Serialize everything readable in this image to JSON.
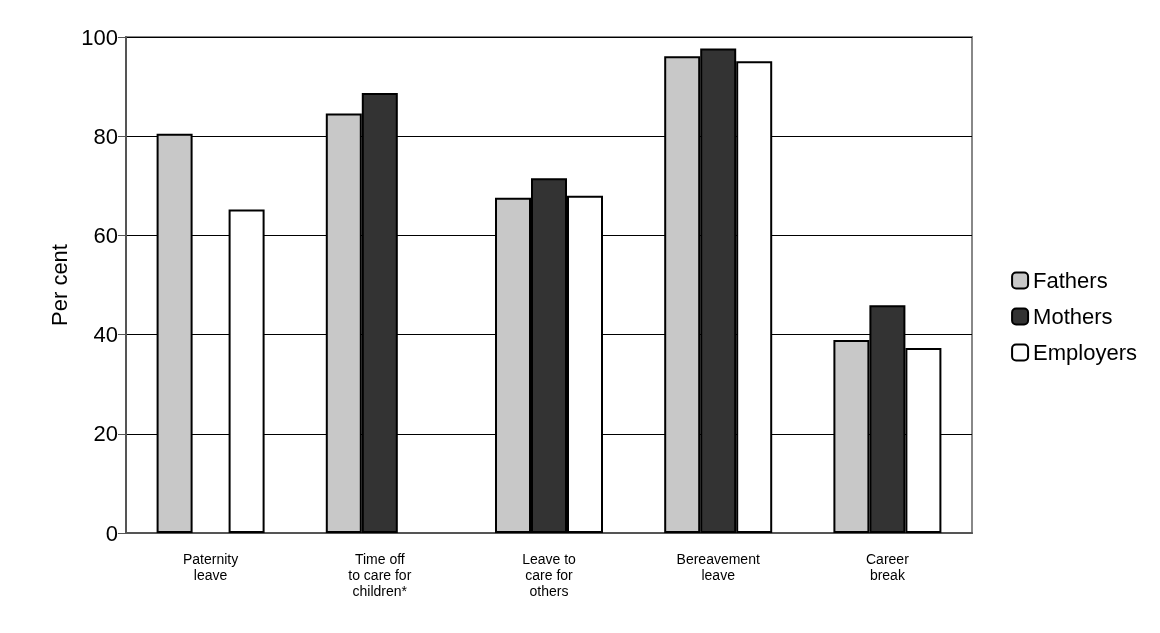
{
  "chart_data": {
    "type": "bar",
    "ylabel": "Per cent",
    "categories": [
      "Paternity\nleave",
      "Time off\nto care for\nchildren*",
      "Leave to\ncare for\nothers",
      "Bereavement\nleave",
      "Career\nbreak"
    ],
    "series": [
      {
        "name": "Fathers",
        "color": "#c8c8c8",
        "values": [
          80.5,
          84.6,
          67.6,
          96.1,
          38.9
        ]
      },
      {
        "name": "Mothers",
        "color": "#333333",
        "values": [
          null,
          88.7,
          71.5,
          97.7,
          45.9
        ]
      },
      {
        "name": "Employers",
        "color": "#ffffff",
        "values": [
          65.2,
          null,
          68,
          95.1,
          37.3
        ]
      }
    ],
    "ylim": [
      0,
      100
    ],
    "yticks": [
      0,
      20,
      40,
      60,
      80,
      100
    ],
    "grid": "y",
    "legend": "right"
  }
}
